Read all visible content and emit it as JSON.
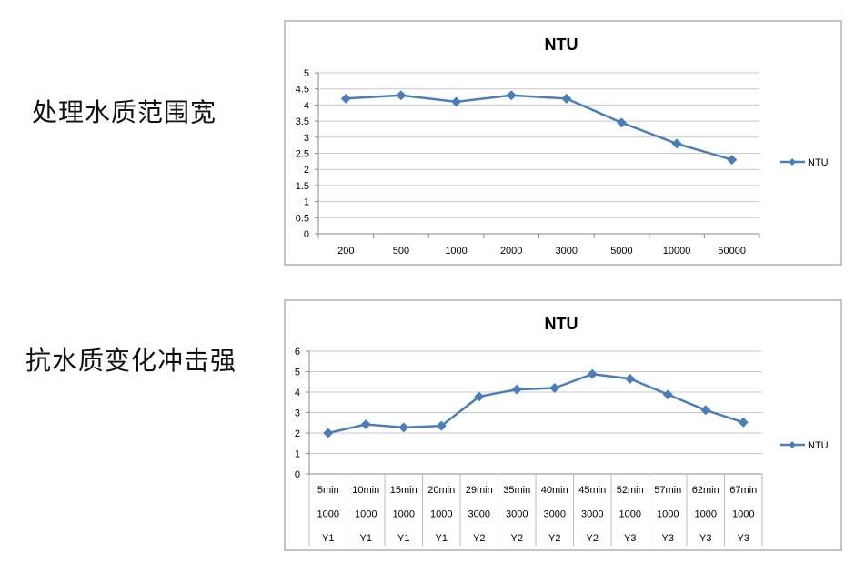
{
  "labels": {
    "top": "处理水质范围宽",
    "bottom": "抗水质变化冲击强"
  },
  "colors": {
    "series": "#4a7ebb",
    "grid": "#c8c8c8",
    "border": "#888888"
  },
  "chart_data": [
    {
      "type": "line",
      "title": "NTU",
      "categories": [
        "200",
        "500",
        "1000",
        "2000",
        "3000",
        "5000",
        "10000",
        "50000"
      ],
      "series": [
        {
          "name": "NTU",
          "values": [
            4.2,
            4.3,
            4.1,
            4.3,
            4.2,
            3.45,
            2.8,
            2.3
          ]
        }
      ],
      "yticks": [
        "0",
        "0.5",
        "1",
        "1.5",
        "2",
        "2.5",
        "3",
        "3.5",
        "4",
        "4.5",
        "5"
      ],
      "ylim": [
        0,
        5
      ],
      "grid": true,
      "legend": "right",
      "marker": "diamond"
    },
    {
      "type": "line",
      "title": "NTU",
      "categories": [
        [
          "5min",
          "1000",
          "Y1"
        ],
        [
          "10min",
          "1000",
          "Y1"
        ],
        [
          "15min",
          "1000",
          "Y1"
        ],
        [
          "20min",
          "1000",
          "Y1"
        ],
        [
          "29min",
          "3000",
          "Y2"
        ],
        [
          "35min",
          "3000",
          "Y2"
        ],
        [
          "40min",
          "3000",
          "Y2"
        ],
        [
          "45min",
          "3000",
          "Y2"
        ],
        [
          "52min",
          "1000",
          "Y3"
        ],
        [
          "57min",
          "1000",
          "Y3"
        ],
        [
          "62min",
          "1000",
          "Y3"
        ],
        [
          "67min",
          "1000",
          "Y3"
        ]
      ],
      "series": [
        {
          "name": "NTU",
          "values": [
            2.0,
            2.42,
            2.27,
            2.35,
            3.78,
            4.13,
            4.2,
            4.88,
            4.65,
            3.88,
            3.12,
            2.52
          ]
        }
      ],
      "yticks": [
        "0",
        "1",
        "2",
        "3",
        "4",
        "5",
        "6"
      ],
      "ylim": [
        0,
        6
      ],
      "grid": true,
      "legend": "right",
      "marker": "diamond"
    }
  ]
}
